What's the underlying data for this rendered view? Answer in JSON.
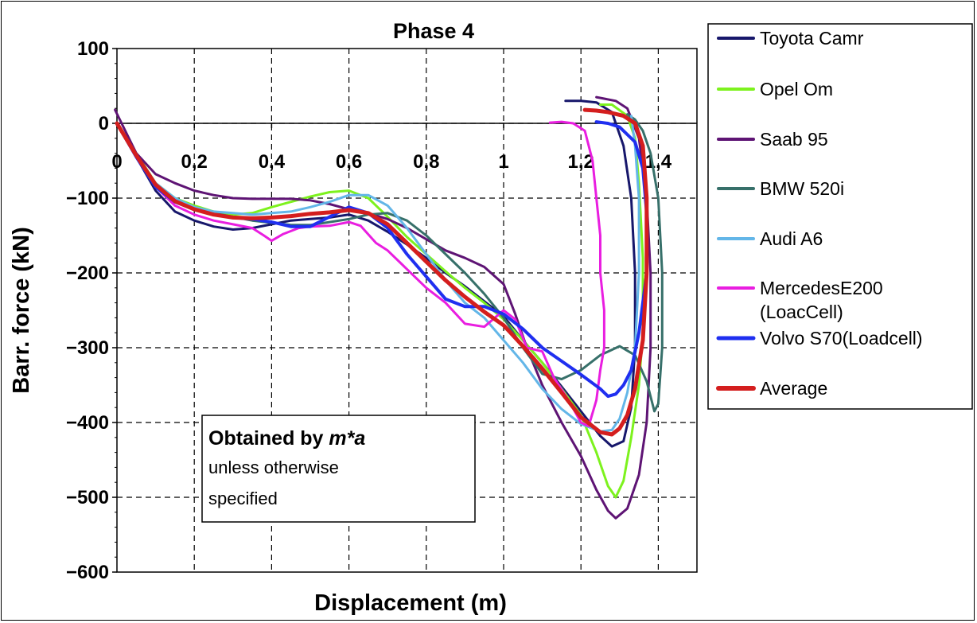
{
  "chart_data": {
    "type": "line",
    "title": "Phase 4",
    "xlabel": "Displacement (m)",
    "ylabel": "Barr. force (kN)",
    "xlim": [
      0,
      1.5
    ],
    "ylim": [
      -600,
      100
    ],
    "x_ticks": [
      "0",
      "0,2",
      "0,4",
      "0,6",
      "0,8",
      "1",
      "1,2",
      "1,4"
    ],
    "y_ticks": [
      "100",
      "0",
      "−100",
      "−200",
      "−300",
      "−400",
      "−500",
      "−600"
    ],
    "grid": "dashed",
    "legend_position": "right",
    "annotation": {
      "line1_prefix": "Obtained by ",
      "line1_emph": "m*a",
      "line2": "unless otherwise",
      "line3": "specified"
    },
    "series": [
      {
        "name": "Toyota Camr",
        "color": "#17176b",
        "width": 3,
        "points": [
          [
            0,
            0
          ],
          [
            0.05,
            -45
          ],
          [
            0.1,
            -90
          ],
          [
            0.15,
            -118
          ],
          [
            0.2,
            -130
          ],
          [
            0.25,
            -138
          ],
          [
            0.3,
            -142
          ],
          [
            0.35,
            -140
          ],
          [
            0.4,
            -135
          ],
          [
            0.45,
            -130
          ],
          [
            0.5,
            -128
          ],
          [
            0.55,
            -126
          ],
          [
            0.6,
            -122
          ],
          [
            0.65,
            -130
          ],
          [
            0.7,
            -145
          ],
          [
            0.75,
            -162
          ],
          [
            0.8,
            -180
          ],
          [
            0.85,
            -200
          ],
          [
            0.9,
            -218
          ],
          [
            0.95,
            -238
          ],
          [
            1.0,
            -258
          ],
          [
            1.05,
            -290
          ],
          [
            1.1,
            -320
          ],
          [
            1.15,
            -352
          ],
          [
            1.2,
            -385
          ],
          [
            1.25,
            -418
          ],
          [
            1.28,
            -432
          ],
          [
            1.31,
            -425
          ],
          [
            1.33,
            -380
          ],
          [
            1.34,
            -300
          ],
          [
            1.34,
            -200
          ],
          [
            1.33,
            -100
          ],
          [
            1.31,
            -30
          ],
          [
            1.28,
            15
          ],
          [
            1.24,
            28
          ],
          [
            1.2,
            30
          ],
          [
            1.16,
            30
          ]
        ]
      },
      {
        "name": "Opel Om",
        "color": "#7df21e",
        "width": 3,
        "points": [
          [
            0,
            0
          ],
          [
            0.05,
            -40
          ],
          [
            0.1,
            -80
          ],
          [
            0.15,
            -100
          ],
          [
            0.2,
            -110
          ],
          [
            0.25,
            -118
          ],
          [
            0.3,
            -122
          ],
          [
            0.35,
            -120
          ],
          [
            0.4,
            -112
          ],
          [
            0.45,
            -105
          ],
          [
            0.5,
            -98
          ],
          [
            0.55,
            -92
          ],
          [
            0.6,
            -90
          ],
          [
            0.65,
            -100
          ],
          [
            0.7,
            -125
          ],
          [
            0.75,
            -152
          ],
          [
            0.8,
            -175
          ],
          [
            0.85,
            -198
          ],
          [
            0.9,
            -220
          ],
          [
            0.95,
            -240
          ],
          [
            1.0,
            -262
          ],
          [
            1.05,
            -290
          ],
          [
            1.1,
            -320
          ],
          [
            1.15,
            -355
          ],
          [
            1.2,
            -390
          ],
          [
            1.24,
            -440
          ],
          [
            1.27,
            -485
          ],
          [
            1.29,
            -500
          ],
          [
            1.31,
            -478
          ],
          [
            1.33,
            -420
          ],
          [
            1.35,
            -350
          ],
          [
            1.36,
            -280
          ],
          [
            1.36,
            -180
          ],
          [
            1.35,
            -80
          ],
          [
            1.34,
            -20
          ],
          [
            1.32,
            10
          ],
          [
            1.28,
            25
          ],
          [
            1.25,
            25
          ]
        ]
      },
      {
        "name": "Saab 95",
        "color": "#5e1474",
        "width": 3,
        "points": [
          [
            -0.005,
            18
          ],
          [
            0.05,
            -40
          ],
          [
            0.1,
            -68
          ],
          [
            0.15,
            -80
          ],
          [
            0.2,
            -90
          ],
          [
            0.25,
            -96
          ],
          [
            0.3,
            -100
          ],
          [
            0.35,
            -101
          ],
          [
            0.4,
            -101
          ],
          [
            0.45,
            -101
          ],
          [
            0.5,
            -103
          ],
          [
            0.55,
            -108
          ],
          [
            0.6,
            -115
          ],
          [
            0.65,
            -120
          ],
          [
            0.7,
            -128
          ],
          [
            0.75,
            -140
          ],
          [
            0.8,
            -155
          ],
          [
            0.85,
            -170
          ],
          [
            0.9,
            -180
          ],
          [
            0.95,
            -192
          ],
          [
            1.0,
            -215
          ],
          [
            1.03,
            -255
          ],
          [
            1.06,
            -300
          ],
          [
            1.1,
            -350
          ],
          [
            1.15,
            -400
          ],
          [
            1.2,
            -445
          ],
          [
            1.24,
            -490
          ],
          [
            1.27,
            -518
          ],
          [
            1.29,
            -528
          ],
          [
            1.32,
            -515
          ],
          [
            1.35,
            -470
          ],
          [
            1.37,
            -400
          ],
          [
            1.38,
            -300
          ],
          [
            1.38,
            -200
          ],
          [
            1.37,
            -100
          ],
          [
            1.35,
            -20
          ],
          [
            1.32,
            20
          ],
          [
            1.29,
            30
          ],
          [
            1.26,
            33
          ],
          [
            1.24,
            35
          ]
        ]
      },
      {
        "name": "BMW 520i",
        "color": "#37706a",
        "width": 3,
        "points": [
          [
            0,
            0
          ],
          [
            0.05,
            -42
          ],
          [
            0.1,
            -82
          ],
          [
            0.15,
            -102
          ],
          [
            0.2,
            -112
          ],
          [
            0.25,
            -120
          ],
          [
            0.3,
            -125
          ],
          [
            0.35,
            -130
          ],
          [
            0.4,
            -133
          ],
          [
            0.45,
            -136
          ],
          [
            0.5,
            -136
          ],
          [
            0.55,
            -132
          ],
          [
            0.6,
            -128
          ],
          [
            0.65,
            -122
          ],
          [
            0.7,
            -120
          ],
          [
            0.75,
            -130
          ],
          [
            0.8,
            -150
          ],
          [
            0.85,
            -175
          ],
          [
            0.9,
            -200
          ],
          [
            0.95,
            -228
          ],
          [
            1.0,
            -260
          ],
          [
            1.05,
            -300
          ],
          [
            1.1,
            -335
          ],
          [
            1.15,
            -342
          ],
          [
            1.2,
            -330
          ],
          [
            1.25,
            -310
          ],
          [
            1.3,
            -298
          ],
          [
            1.34,
            -310
          ],
          [
            1.37,
            -345
          ],
          [
            1.39,
            -385
          ],
          [
            1.4,
            -375
          ],
          [
            1.41,
            -300
          ],
          [
            1.41,
            -200
          ],
          [
            1.4,
            -100
          ],
          [
            1.38,
            -40
          ],
          [
            1.36,
            -10
          ],
          [
            1.34,
            5
          ],
          [
            1.32,
            12
          ]
        ]
      },
      {
        "name": "Audi A6",
        "color": "#63b6e8",
        "width": 3,
        "points": [
          [
            0,
            0
          ],
          [
            0.05,
            -42
          ],
          [
            0.1,
            -80
          ],
          [
            0.15,
            -100
          ],
          [
            0.2,
            -112
          ],
          [
            0.25,
            -118
          ],
          [
            0.3,
            -120
          ],
          [
            0.35,
            -122
          ],
          [
            0.4,
            -120
          ],
          [
            0.45,
            -118
          ],
          [
            0.5,
            -112
          ],
          [
            0.55,
            -105
          ],
          [
            0.6,
            -96
          ],
          [
            0.65,
            -96
          ],
          [
            0.7,
            -110
          ],
          [
            0.75,
            -140
          ],
          [
            0.8,
            -175
          ],
          [
            0.85,
            -210
          ],
          [
            0.9,
            -240
          ],
          [
            0.95,
            -260
          ],
          [
            1.0,
            -290
          ],
          [
            1.05,
            -320
          ],
          [
            1.1,
            -355
          ],
          [
            1.15,
            -382
          ],
          [
            1.2,
            -402
          ],
          [
            1.25,
            -412
          ],
          [
            1.28,
            -410
          ],
          [
            1.3,
            -395
          ],
          [
            1.32,
            -360
          ],
          [
            1.34,
            -300
          ],
          [
            1.35,
            -200
          ],
          [
            1.35,
            -100
          ],
          [
            1.34,
            -30
          ],
          [
            1.33,
            10
          ]
        ]
      },
      {
        "name": "MercedesE200 (LoacCell)",
        "color": "#e91ee0",
        "width": 3,
        "points": [
          [
            0,
            0
          ],
          [
            0.05,
            -45
          ],
          [
            0.1,
            -85
          ],
          [
            0.15,
            -110
          ],
          [
            0.2,
            -122
          ],
          [
            0.25,
            -130
          ],
          [
            0.3,
            -135
          ],
          [
            0.35,
            -140
          ],
          [
            0.38,
            -150
          ],
          [
            0.4,
            -157
          ],
          [
            0.43,
            -148
          ],
          [
            0.47,
            -140
          ],
          [
            0.5,
            -138
          ],
          [
            0.55,
            -137
          ],
          [
            0.6,
            -132
          ],
          [
            0.63,
            -137
          ],
          [
            0.67,
            -160
          ],
          [
            0.7,
            -170
          ],
          [
            0.75,
            -195
          ],
          [
            0.8,
            -220
          ],
          [
            0.85,
            -240
          ],
          [
            0.9,
            -268
          ],
          [
            0.95,
            -272
          ],
          [
            1.0,
            -250
          ],
          [
            1.03,
            -262
          ],
          [
            1.06,
            -300
          ],
          [
            1.1,
            -305
          ],
          [
            1.13,
            -340
          ],
          [
            1.17,
            -372
          ],
          [
            1.2,
            -400
          ],
          [
            1.22,
            -405
          ],
          [
            1.24,
            -370
          ],
          [
            1.25,
            -330
          ],
          [
            1.26,
            -300
          ],
          [
            1.26,
            -250
          ],
          [
            1.25,
            -200
          ],
          [
            1.25,
            -150
          ],
          [
            1.24,
            -100
          ],
          [
            1.23,
            -50
          ],
          [
            1.21,
            -10
          ],
          [
            1.18,
            0
          ],
          [
            1.15,
            2
          ],
          [
            1.12,
            1
          ]
        ]
      },
      {
        "name": "Volvo S70(Loadcell)",
        "color": "#1f2ff0",
        "width": 4,
        "points": [
          [
            0,
            0
          ],
          [
            0.05,
            -45
          ],
          [
            0.1,
            -85
          ],
          [
            0.15,
            -105
          ],
          [
            0.2,
            -115
          ],
          [
            0.25,
            -122
          ],
          [
            0.3,
            -126
          ],
          [
            0.35,
            -128
          ],
          [
            0.4,
            -132
          ],
          [
            0.45,
            -138
          ],
          [
            0.5,
            -138
          ],
          [
            0.55,
            -125
          ],
          [
            0.6,
            -112
          ],
          [
            0.65,
            -120
          ],
          [
            0.7,
            -140
          ],
          [
            0.75,
            -175
          ],
          [
            0.8,
            -205
          ],
          [
            0.85,
            -235
          ],
          [
            0.9,
            -245
          ],
          [
            0.95,
            -245
          ],
          [
            1.0,
            -255
          ],
          [
            1.05,
            -275
          ],
          [
            1.1,
            -300
          ],
          [
            1.15,
            -318
          ],
          [
            1.2,
            -336
          ],
          [
            1.25,
            -355
          ],
          [
            1.27,
            -365
          ],
          [
            1.29,
            -362
          ],
          [
            1.31,
            -350
          ],
          [
            1.33,
            -330
          ],
          [
            1.35,
            -280
          ],
          [
            1.37,
            -200
          ],
          [
            1.37,
            -120
          ],
          [
            1.36,
            -60
          ],
          [
            1.34,
            -25
          ],
          [
            1.3,
            -5
          ],
          [
            1.27,
            0
          ],
          [
            1.24,
            2
          ]
        ]
      },
      {
        "name": "Average",
        "color": "#d41e1e",
        "width": 5,
        "points": [
          [
            0,
            0
          ],
          [
            0.05,
            -43
          ],
          [
            0.1,
            -82
          ],
          [
            0.15,
            -104
          ],
          [
            0.2,
            -115
          ],
          [
            0.25,
            -122
          ],
          [
            0.3,
            -126
          ],
          [
            0.35,
            -127
          ],
          [
            0.4,
            -126
          ],
          [
            0.45,
            -124
          ],
          [
            0.5,
            -121
          ],
          [
            0.55,
            -119
          ],
          [
            0.6,
            -116
          ],
          [
            0.65,
            -120
          ],
          [
            0.7,
            -135
          ],
          [
            0.75,
            -160
          ],
          [
            0.8,
            -185
          ],
          [
            0.85,
            -210
          ],
          [
            0.9,
            -232
          ],
          [
            0.95,
            -252
          ],
          [
            1.0,
            -270
          ],
          [
            1.05,
            -298
          ],
          [
            1.1,
            -328
          ],
          [
            1.15,
            -360
          ],
          [
            1.2,
            -393
          ],
          [
            1.25,
            -413
          ],
          [
            1.28,
            -416
          ],
          [
            1.3,
            -408
          ],
          [
            1.32,
            -390
          ],
          [
            1.34,
            -355
          ],
          [
            1.36,
            -290
          ],
          [
            1.37,
            -200
          ],
          [
            1.37,
            -100
          ],
          [
            1.36,
            -30
          ],
          [
            1.34,
            0
          ],
          [
            1.31,
            10
          ],
          [
            1.27,
            15
          ],
          [
            1.24,
            17
          ],
          [
            1.21,
            18
          ]
        ]
      }
    ]
  }
}
